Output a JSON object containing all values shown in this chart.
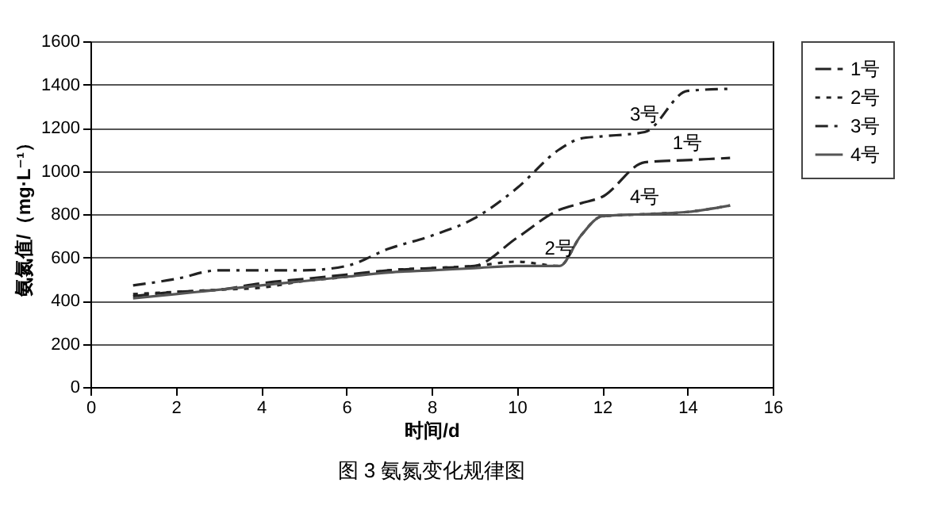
{
  "chart_data": {
    "type": "line",
    "title": "图 3  氨氮变化规律图",
    "xlabel": "时间/d",
    "ylabel": "氨氮值/（mg·L⁻¹）",
    "x": [
      1,
      2,
      3,
      4,
      5,
      6,
      7,
      8,
      9,
      10,
      11,
      11.5,
      12,
      13,
      14,
      15
    ],
    "series": [
      {
        "name": "1号",
        "color": "#222222",
        "line_style": "dashed",
        "values": [
          420,
          440,
          450,
          480,
          500,
          520,
          540,
          550,
          560,
          690,
          820,
          850,
          880,
          1040,
          1050,
          1060
        ]
      },
      {
        "name": "2号",
        "color": "#222222",
        "line_style": "dotted",
        "values": [
          430,
          440,
          450,
          460,
          490,
          510,
          540,
          550,
          560,
          580,
          560,
          700,
          790,
          800,
          810,
          840
        ]
      },
      {
        "name": "3号",
        "color": "#222222",
        "line_style": "dashdot",
        "values": [
          470,
          500,
          540,
          540,
          540,
          560,
          640,
          700,
          780,
          920,
          1100,
          1150,
          1160,
          1180,
          1370,
          1380
        ]
      },
      {
        "name": "4号",
        "color": "#555555",
        "line_style": "solid",
        "values": [
          410,
          430,
          450,
          470,
          490,
          510,
          530,
          540,
          550,
          560,
          560,
          700,
          790,
          800,
          810,
          840
        ]
      }
    ],
    "annotations": [
      {
        "text": "3号",
        "x": 13,
        "y": 1180
      },
      {
        "text": "1号",
        "x": 14,
        "y": 1050
      },
      {
        "text": "2号",
        "x": 11,
        "y": 560
      },
      {
        "text": "4号",
        "x": 13,
        "y": 800
      }
    ],
    "xlim": [
      0,
      16
    ],
    "xticks": [
      0,
      2,
      4,
      6,
      8,
      10,
      12,
      14,
      16
    ],
    "ylim": [
      0,
      1600
    ],
    "yticks": [
      0,
      200,
      400,
      600,
      800,
      1000,
      1200,
      1400,
      1600
    ],
    "grid": "y",
    "legend": "right",
    "marker": "none"
  }
}
